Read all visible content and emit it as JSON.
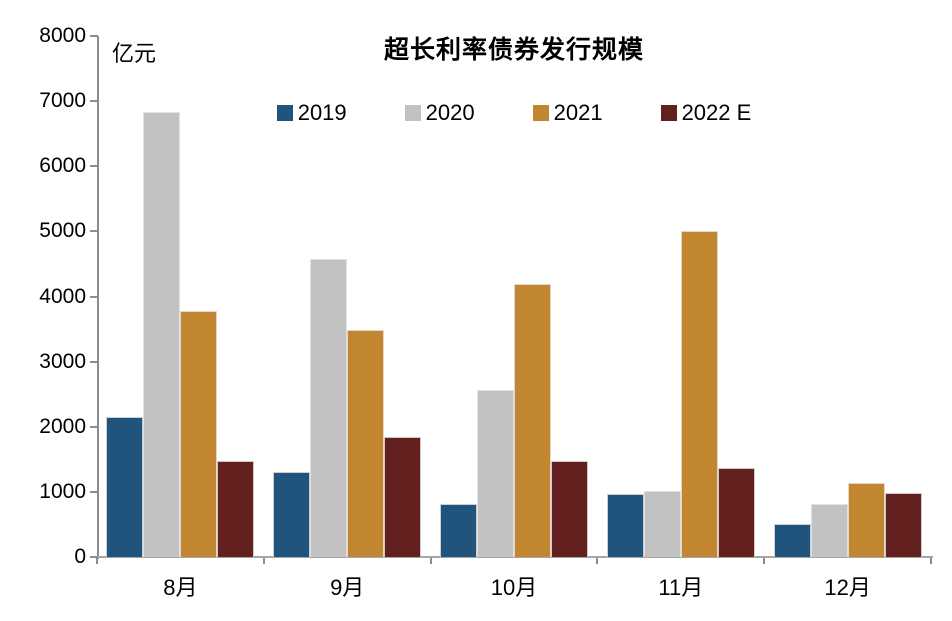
{
  "chart_data": {
    "type": "bar",
    "title": "超长利率债券发行规模",
    "unit_label": "亿元",
    "categories": [
      "8月",
      "9月",
      "10月",
      "11月",
      "12月"
    ],
    "series": [
      {
        "name": "2019",
        "color": "#21547D",
        "values": [
          2150,
          1300,
          810,
          960,
          500
        ]
      },
      {
        "name": "2020",
        "color": "#C2C2C2",
        "values": [
          6840,
          4570,
          2560,
          1010,
          810
        ]
      },
      {
        "name": "2021",
        "color": "#C28530",
        "values": [
          3780,
          3480,
          4190,
          5000,
          1130
        ]
      },
      {
        "name": "2022 E",
        "color": "#62201F",
        "values": [
          1470,
          1850,
          1470,
          1360,
          980
        ]
      }
    ],
    "ylim": [
      0,
      8000
    ],
    "ytick_step": 1000,
    "yticks": [
      "0",
      "1000",
      "2000",
      "3000",
      "4000",
      "5000",
      "6000",
      "7000",
      "8000"
    ],
    "grid": false,
    "legend_position": "top",
    "axis_color": "#8c8c8c"
  }
}
